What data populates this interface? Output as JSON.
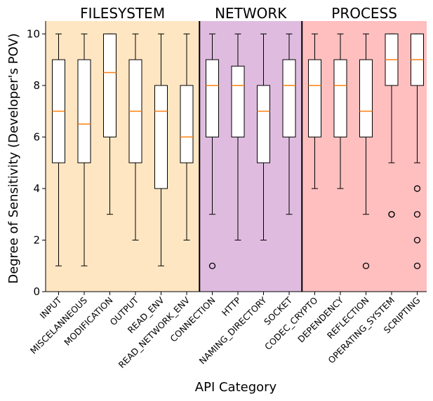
{
  "chart_data": {
    "type": "box",
    "xlabel": "API Category",
    "ylabel": "Degree of Sensitivity (Developer's POV)",
    "ylim": [
      0,
      10.5
    ],
    "yticks": [
      0,
      2,
      4,
      6,
      8,
      10
    ],
    "grid": false,
    "groups": [
      {
        "name": "FILESYSTEM",
        "color": "#ffe6c2",
        "start": 0,
        "end": 5
      },
      {
        "name": "NETWORK",
        "color": "#dfbcdf",
        "start": 6,
        "end": 9
      },
      {
        "name": "PROCESS",
        "color": "#ffbfbf",
        "start": 10,
        "end": 14
      }
    ],
    "boxes": [
      {
        "label": "INPUT",
        "whislo": 1,
        "q1": 5,
        "med": 7,
        "q3": 9,
        "whishi": 10,
        "fliers": []
      },
      {
        "label": "MISCELANNEOUS",
        "whislo": 1,
        "q1": 5,
        "med": 6.5,
        "q3": 9,
        "whishi": 10,
        "fliers": []
      },
      {
        "label": "MODIFICATION",
        "whislo": 3,
        "q1": 6,
        "med": 8.5,
        "q3": 10,
        "whishi": 10,
        "fliers": []
      },
      {
        "label": "OUTPUT",
        "whislo": 2,
        "q1": 5,
        "med": 7,
        "q3": 9,
        "whishi": 10,
        "fliers": []
      },
      {
        "label": "READ_ENV",
        "whislo": 1,
        "q1": 4,
        "med": 7,
        "q3": 8,
        "whishi": 10,
        "fliers": []
      },
      {
        "label": "READ_NETWORK_ENV",
        "whislo": 2,
        "q1": 5,
        "med": 6,
        "q3": 8,
        "whishi": 10,
        "fliers": []
      },
      {
        "label": "CONNECTION",
        "whislo": 3,
        "q1": 6,
        "med": 8,
        "q3": 9,
        "whishi": 10,
        "fliers": [
          1
        ]
      },
      {
        "label": "HTTP",
        "whislo": 2,
        "q1": 6,
        "med": 8,
        "q3": 8.75,
        "whishi": 10,
        "fliers": []
      },
      {
        "label": "NAMING_DIRECTORY",
        "whislo": 2,
        "q1": 5,
        "med": 7,
        "q3": 8,
        "whishi": 10,
        "fliers": []
      },
      {
        "label": "SOCKET",
        "whislo": 3,
        "q1": 6,
        "med": 8,
        "q3": 9,
        "whishi": 10,
        "fliers": []
      },
      {
        "label": "CODEC_CRYPTO",
        "whislo": 4,
        "q1": 6,
        "med": 8,
        "q3": 9,
        "whishi": 10,
        "fliers": []
      },
      {
        "label": "DEPENDENCY",
        "whislo": 4,
        "q1": 6,
        "med": 8,
        "q3": 9,
        "whishi": 10,
        "fliers": []
      },
      {
        "label": "REFLECTION",
        "whislo": 3,
        "q1": 6,
        "med": 7,
        "q3": 9,
        "whishi": 10,
        "fliers": [
          1
        ]
      },
      {
        "label": "OPERATING_SYSTEM",
        "whislo": 5,
        "q1": 8,
        "med": 9,
        "q3": 10,
        "whishi": 10,
        "fliers": [
          3,
          3
        ]
      },
      {
        "label": "SCRIPTING",
        "whislo": 5,
        "q1": 8,
        "med": 9,
        "q3": 10,
        "whishi": 10,
        "fliers": [
          1,
          2,
          3,
          4
        ]
      }
    ],
    "median_color": "#ff7f0e"
  }
}
